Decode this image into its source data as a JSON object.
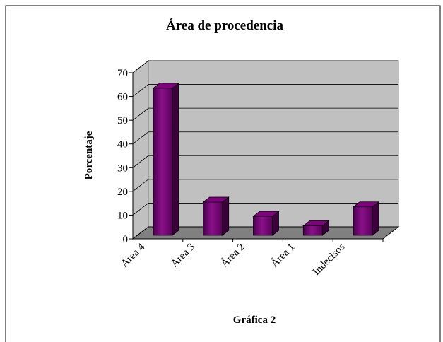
{
  "chart_data": {
    "type": "bar3d",
    "title": "Área de procedencia",
    "categories": [
      "Área 4",
      "Área 3",
      "Área 2",
      "Área 1",
      "Indecisos"
    ],
    "values": [
      62,
      14,
      8,
      4,
      12
    ],
    "color": "#800080",
    "ylabel": "Porcentaje",
    "xlabel": "Gráfica 2",
    "ylim": [
      0,
      70
    ],
    "yticks": [
      0,
      10,
      20,
      30,
      40,
      50,
      60,
      70
    ],
    "grid": true
  }
}
